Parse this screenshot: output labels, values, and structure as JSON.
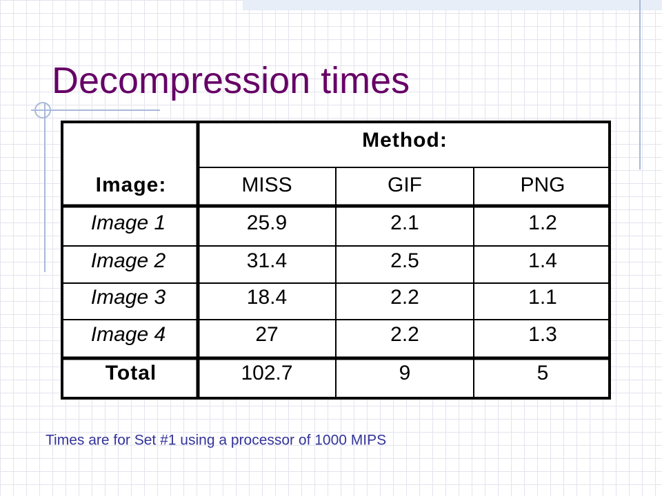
{
  "title": "Decompression times",
  "table": {
    "header": {
      "group": "Method:",
      "row_label": "Image:",
      "columns": [
        "MISS",
        "GIF",
        "PNG"
      ]
    },
    "rows": [
      {
        "label": "Image 1",
        "values": [
          25.9,
          2.1,
          1.2
        ]
      },
      {
        "label": "Image 2",
        "values": [
          31.4,
          2.5,
          1.4
        ]
      },
      {
        "label": "Image 3",
        "values": [
          18.4,
          2.2,
          1.1
        ]
      },
      {
        "label": "Image 4",
        "values": [
          27,
          2.2,
          1.3
        ]
      }
    ],
    "total": {
      "label": "Total",
      "values": [
        102.7,
        9,
        5
      ]
    }
  },
  "footnote": "Times are for Set #1 using a processor of 1000 MIPS"
}
